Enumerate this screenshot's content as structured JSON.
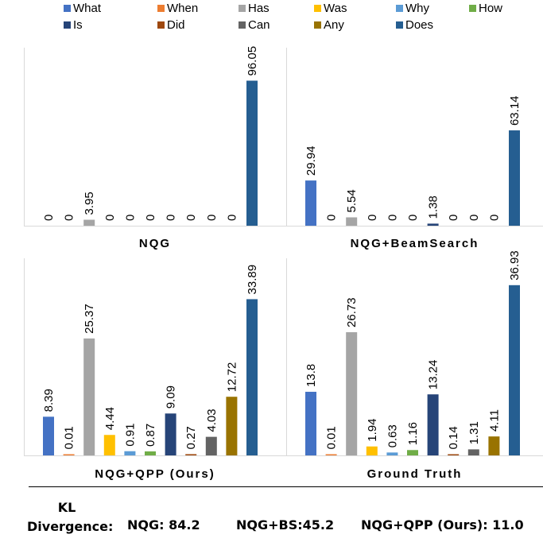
{
  "legend": [
    {
      "name": "What",
      "color": "#4472C4"
    },
    {
      "name": "When",
      "color": "#ED7D31"
    },
    {
      "name": "Has",
      "color": "#A5A5A5"
    },
    {
      "name": "Was",
      "color": "#FFC000"
    },
    {
      "name": "Why",
      "color": "#5B9BD5"
    },
    {
      "name": "How",
      "color": "#70AD47"
    },
    {
      "name": "Is",
      "color": "#264478"
    },
    {
      "name": "Did",
      "color": "#9E480E"
    },
    {
      "name": "Can",
      "color": "#636363"
    },
    {
      "name": "Any",
      "color": "#997300"
    },
    {
      "name": "Does",
      "color": "#255E91"
    }
  ],
  "chart_data": [
    {
      "type": "bar",
      "title": "NQG",
      "categories": [
        "What",
        "When",
        "Has",
        "Was",
        "Why",
        "How",
        "Is",
        "Did",
        "Can",
        "Any",
        "Does"
      ],
      "values": [
        0,
        0,
        3.95,
        0,
        0,
        0,
        0,
        0,
        0,
        0,
        96.05
      ],
      "labels": [
        "0",
        "0",
        "3.95",
        "0",
        "0",
        "0",
        "0",
        "0",
        "0",
        "0",
        "96.05"
      ],
      "ylim": [
        0,
        100
      ]
    },
    {
      "type": "bar",
      "title": "NQG+BeamSearch",
      "categories": [
        "What",
        "When",
        "Has",
        "Was",
        "Why",
        "How",
        "Is",
        "Did",
        "Can",
        "Any",
        "Does"
      ],
      "values": [
        29.94,
        0,
        5.54,
        0,
        0,
        0,
        1.38,
        0,
        0,
        0,
        63.14
      ],
      "labels": [
        "29.94",
        "0",
        "5.54",
        "0",
        "0",
        "0",
        "1.38",
        "0",
        "0",
        "0",
        "63.14"
      ],
      "ylim": [
        0,
        100
      ]
    },
    {
      "type": "bar",
      "title": "NQG+QPP (Ours)",
      "categories": [
        "What",
        "When",
        "Has",
        "Was",
        "Why",
        "How",
        "Is",
        "Did",
        "Can",
        "Any",
        "Does"
      ],
      "values": [
        8.39,
        0.01,
        25.37,
        4.44,
        0.91,
        0.87,
        9.09,
        0.27,
        4.03,
        12.72,
        33.89
      ],
      "labels": [
        "8.39",
        "0.01",
        "25.37",
        "4.44",
        "0.91",
        "0.87",
        "9.09",
        "0.27",
        "4.03",
        "12.72",
        "33.89"
      ],
      "ylim": [
        0,
        40
      ]
    },
    {
      "type": "bar",
      "title": "Ground Truth",
      "categories": [
        "What",
        "When",
        "Has",
        "Was",
        "Why",
        "How",
        "Is",
        "Did",
        "Can",
        "Any",
        "Does"
      ],
      "values": [
        13.8,
        0.01,
        26.73,
        1.94,
        0.63,
        1.16,
        13.24,
        0.14,
        1.31,
        4.11,
        36.93
      ],
      "labels": [
        "13.8",
        "0.01",
        "26.73",
        "1.94",
        "0.63",
        "1.16",
        "13.24",
        "0.14",
        "1.31",
        "4.11",
        "36.93"
      ],
      "ylim": [
        0,
        40
      ]
    }
  ],
  "kl": {
    "label": "KL Divergence:",
    "nqg": "NQG: 84.2",
    "bs": "NQG+BS:45.2",
    "qpp": "NQG+QPP (Ours): 11.0"
  }
}
